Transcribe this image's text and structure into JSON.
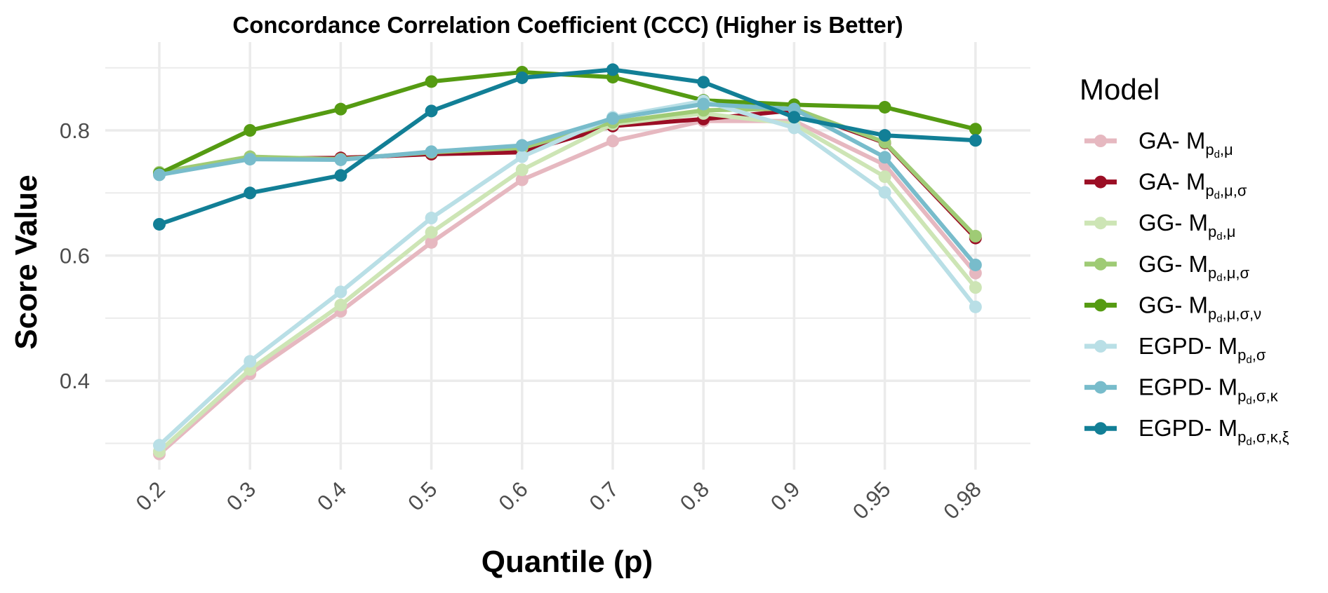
{
  "chart_data": {
    "type": "line",
    "title": "Concordance Correlation Coefficient (CCC) (Higher is Better)",
    "xlabel": "Quantile (p)",
    "ylabel": "Score Value",
    "categories": [
      "0.2",
      "0.3",
      "0.4",
      "0.5",
      "0.6",
      "0.7",
      "0.8",
      "0.9",
      "0.95",
      "0.98"
    ],
    "ylim": [
      0.25,
      0.92
    ],
    "yticks": [
      0.4,
      0.6,
      0.8
    ],
    "ytick_labels": [
      "0.4",
      "0.6",
      "0.8"
    ],
    "grid": true,
    "legend": {
      "title": "Model",
      "placement": "right"
    },
    "series": [
      {
        "name": "GA- M_{pd,μ}",
        "prefix": "GA- M",
        "sub_base": "p",
        "sub_d": "d",
        "sub_rest": ",μ",
        "color": "#e6b8c0",
        "values": [
          0.283,
          0.411,
          0.511,
          0.621,
          0.721,
          0.783,
          0.815,
          0.815,
          0.745,
          0.572
        ]
      },
      {
        "name": "GA- M_{pd,μ,σ}",
        "prefix": "GA- M",
        "sub_base": "p",
        "sub_d": "d",
        "sub_rest": ",μ,σ",
        "color": "#9b0e25",
        "values": [
          0.731,
          0.755,
          0.756,
          0.762,
          0.765,
          0.807,
          0.818,
          0.832,
          0.78,
          0.628
        ]
      },
      {
        "name": "GG- M_{pd,μ}",
        "prefix": "GG- M",
        "sub_base": "p",
        "sub_d": "d",
        "sub_rest": ",μ",
        "color": "#cde5b5",
        "values": [
          0.287,
          0.418,
          0.521,
          0.637,
          0.737,
          0.81,
          0.827,
          0.81,
          0.726,
          0.549
        ]
      },
      {
        "name": "GG- M_{pd,μ,σ}",
        "prefix": "GG- M",
        "sub_base": "p",
        "sub_d": "d",
        "sub_rest": ",μ,σ",
        "color": "#9fcb75",
        "values": [
          0.733,
          0.758,
          0.754,
          0.765,
          0.772,
          0.813,
          0.832,
          0.835,
          0.781,
          0.631
        ]
      },
      {
        "name": "GG- M_{pd,μ,σ,ν}",
        "prefix": "GG- M",
        "sub_base": "p",
        "sub_d": "d",
        "sub_rest": ",μ,σ,ν",
        "color": "#559b12",
        "values": [
          0.731,
          0.8,
          0.834,
          0.878,
          0.893,
          0.885,
          0.848,
          0.841,
          0.837,
          0.802
        ]
      },
      {
        "name": "EGPD- M_{pd,σ}",
        "prefix": "EGPD- M",
        "sub_base": "p",
        "sub_d": "d",
        "sub_rest": ",σ",
        "color": "#b9dfe6",
        "values": [
          0.297,
          0.431,
          0.542,
          0.66,
          0.758,
          0.821,
          0.847,
          0.804,
          0.701,
          0.518
        ]
      },
      {
        "name": "EGPD- M_{pd,σ,κ}",
        "prefix": "EGPD- M",
        "sub_base": "p",
        "sub_d": "d",
        "sub_rest": ",σ,κ",
        "color": "#78bccb",
        "values": [
          0.729,
          0.754,
          0.753,
          0.766,
          0.776,
          0.819,
          0.842,
          0.834,
          0.757,
          0.585
        ]
      },
      {
        "name": "EGPD- M_{pd,σ,κ,ξ}",
        "prefix": "EGPD- M",
        "sub_base": "p",
        "sub_d": "d",
        "sub_rest": ",σ,κ,ξ",
        "color": "#127f96",
        "values": [
          0.65,
          0.7,
          0.728,
          0.831,
          0.884,
          0.897,
          0.877,
          0.821,
          0.792,
          0.784
        ]
      }
    ]
  }
}
